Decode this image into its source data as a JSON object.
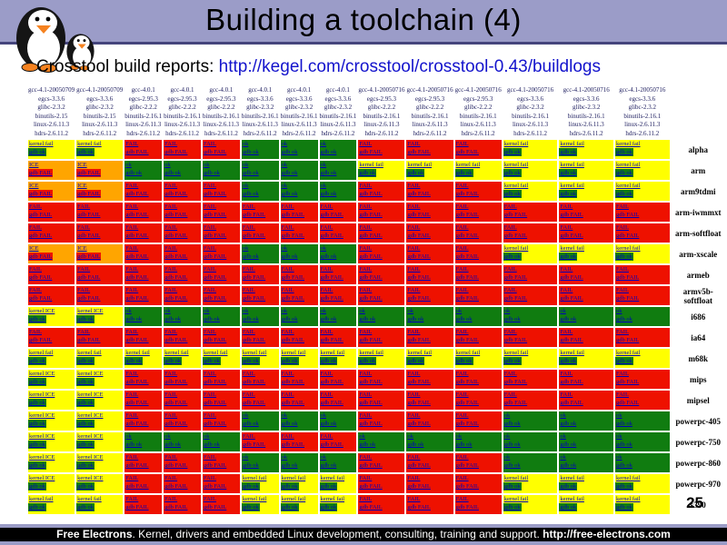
{
  "slide": {
    "title": "Building a toolchain (4)",
    "page_number": "25"
  },
  "header": {
    "logo_icon": "penguins-logo",
    "band_color": "#9b9cc8",
    "band_line_color": "#45457c"
  },
  "subtitle": {
    "label": "Crosstool build reports: ",
    "link": "http://kegel.com/crosstool/crosstool-0.43/buildlogs"
  },
  "colors": {
    "pass_green": "#107c10",
    "fail_red": "#ee1100",
    "kernel_fail_yellow": "#ffff00",
    "ice_orange": "#ffa500",
    "cell_link_blue": "#0000bb",
    "subtitle_link_blue": "#1313cc",
    "footer_bar": "#9a9bc6",
    "footer_band": "#000000"
  },
  "matrix": {
    "columns": [
      {
        "lines": [
          "gcc-4.1-20050709",
          "egcs-3.3.6",
          "glibc-2.3.2",
          "binutils-2.15",
          "linux-2.6.11.3",
          "hdrs-2.6.11.2"
        ]
      },
      {
        "lines": [
          "gcc-4.1-20050709",
          "egcs-3.3.6",
          "glibc-2.3.2",
          "binutils-2.15",
          "linux-2.6.11.3",
          "hdrs-2.6.11.2"
        ]
      },
      {
        "lines": [
          "gcc-4.0.1",
          "egcs-2.95.3",
          "glibc-2.2.2",
          "binutils-2.16.1",
          "linux-2.6.11.3",
          "hdrs-2.6.11.2"
        ]
      },
      {
        "lines": [
          "gcc-4.0.1",
          "egcs-2.95.3",
          "glibc-2.2.2",
          "binutils-2.16.1",
          "linux-2.6.11.3",
          "hdrs-2.6.11.2"
        ]
      },
      {
        "lines": [
          "gcc-4.0.1",
          "egcs-2.95.3",
          "glibc-2.2.2",
          "binutils-2.16.1",
          "linux-2.6.11.3",
          "hdrs-2.6.11.2"
        ]
      },
      {
        "lines": [
          "gcc-4.0.1",
          "egcs-3.3.6",
          "glibc-2.3.2",
          "binutils-2.16.1",
          "linux-2.6.11.3",
          "hdrs-2.6.11.2"
        ]
      },
      {
        "lines": [
          "gcc-4.0.1",
          "egcs-3.3.6",
          "glibc-2.3.2",
          "binutils-2.16.1",
          "linux-2.6.11.3",
          "hdrs-2.6.11.2"
        ]
      },
      {
        "lines": [
          "gcc-4.0.1",
          "egcs-3.3.6",
          "glibc-2.3.2",
          "binutils-2.16.1",
          "linux-2.6.11.3",
          "hdrs-2.6.11.2"
        ]
      },
      {
        "lines": [
          "gcc-4.1-20050716",
          "egcs-2.95.3",
          "glibc-2.2.2",
          "binutils-2.16.1",
          "linux-2.6.11.3",
          "hdrs-2.6.11.2"
        ]
      },
      {
        "lines": [
          "gcc-4.1-20050716",
          "egcs-2.95.3",
          "glibc-2.2.2",
          "binutils-2.16.1",
          "linux-2.6.11.3",
          "hdrs-2.6.11.2"
        ]
      },
      {
        "lines": [
          "gcc-4.1-20050716",
          "egcs-2.95.3",
          "glibc-2.2.2",
          "binutils-2.16.1",
          "linux-2.6.11.3",
          "hdrs-2.6.11.2"
        ]
      },
      {
        "lines": [
          "gcc-4.1-20050716",
          "egcs-3.3.6",
          "glibc-2.3.2",
          "binutils-2.16.1",
          "linux-2.6.11.3",
          "hdrs-2.6.11.2"
        ]
      },
      {
        "lines": [
          "gcc-4.1-20050716",
          "egcs-3.3.6",
          "glibc-2.3.2",
          "binutils-2.16.1",
          "linux-2.6.11.3",
          "hdrs-2.6.11.2"
        ]
      },
      {
        "lines": [
          "gcc-4.1-20050716",
          "egcs-3.3.6",
          "glibc-2.3.2",
          "binutils-2.16.1",
          "linux-2.6.11.3",
          "hdrs-2.6.11.2"
        ]
      }
    ],
    "cell_types": {
      "G": {
        "bg": "#107c10",
        "lines": [
          {
            "text": "ok"
          },
          {
            "text": "gdb ok"
          }
        ]
      },
      "R": {
        "bg": "#ee1100",
        "lines": [
          {
            "text": "FAIL"
          },
          {
            "text": "gdb FAIL"
          }
        ]
      },
      "Y": {
        "bg": "#ffff00",
        "lines": [
          {
            "text": "kernel fail"
          },
          {
            "text": "gdb ok",
            "highlight": "#107c10"
          }
        ]
      },
      "I": {
        "bg": "#ffff00",
        "lines": [
          {
            "text": "kernel ICE"
          },
          {
            "text": "gdb ok",
            "highlight": "#107c10"
          }
        ]
      },
      "O": {
        "bg": "#ffa500",
        "lines": [
          {
            "text": "ICE"
          },
          {
            "text": "gdb FAIL",
            "highlight": "#ee1100"
          }
        ]
      }
    },
    "rows": [
      {
        "label": "alpha",
        "cells": "YYRRRGGGRRRYYY"
      },
      {
        "label": "arm",
        "cells": "OOGGGGGGYYYYYY"
      },
      {
        "label": "arm9tdmi",
        "cells": "OORRRGGGRRRYYY"
      },
      {
        "label": "arm-iwmmxt",
        "cells": "RRRRRRRRRRRRRR"
      },
      {
        "label": "arm-softfloat",
        "cells": "RRRRRRRRRRRRRR"
      },
      {
        "label": "arm-xscale",
        "cells": "OORRRGGGRRRYYY"
      },
      {
        "label": "armeb",
        "cells": "RRRRRRRRRRRRRR"
      },
      {
        "label": "armv5b-softfloat",
        "cells": "RRRRRRRRRRRRRR"
      },
      {
        "label": "i686",
        "cells": "IIGGGGGGGGGGGG"
      },
      {
        "label": "ia64",
        "cells": "RRRRRRRRRRRRRR"
      },
      {
        "label": "m68k",
        "cells": "YYYYYYYYYYYYYY"
      },
      {
        "label": "mips",
        "cells": "IIRRRRRRRRRRRR"
      },
      {
        "label": "mipsel",
        "cells": "IIRRRRRRRRRRRR"
      },
      {
        "label": "powerpc-405",
        "cells": "IIRRRGGGRRRGGG"
      },
      {
        "label": "powerpc-750",
        "cells": "IIGGGRRRGGGGGG"
      },
      {
        "label": "powerpc-860",
        "cells": "IIRRRGGGRRRGGG"
      },
      {
        "label": "powerpc-970",
        "cells": "IIRRRYYYRRRYYY"
      },
      {
        "label": "s390",
        "cells": "YYRRRYYYRRRYYY"
      }
    ]
  },
  "footer": {
    "brand": "Free Electrons",
    "text": ". Kernel, drivers and embedded Linux development, consulting, training and support. ",
    "url": "http://free-electrons.com"
  }
}
